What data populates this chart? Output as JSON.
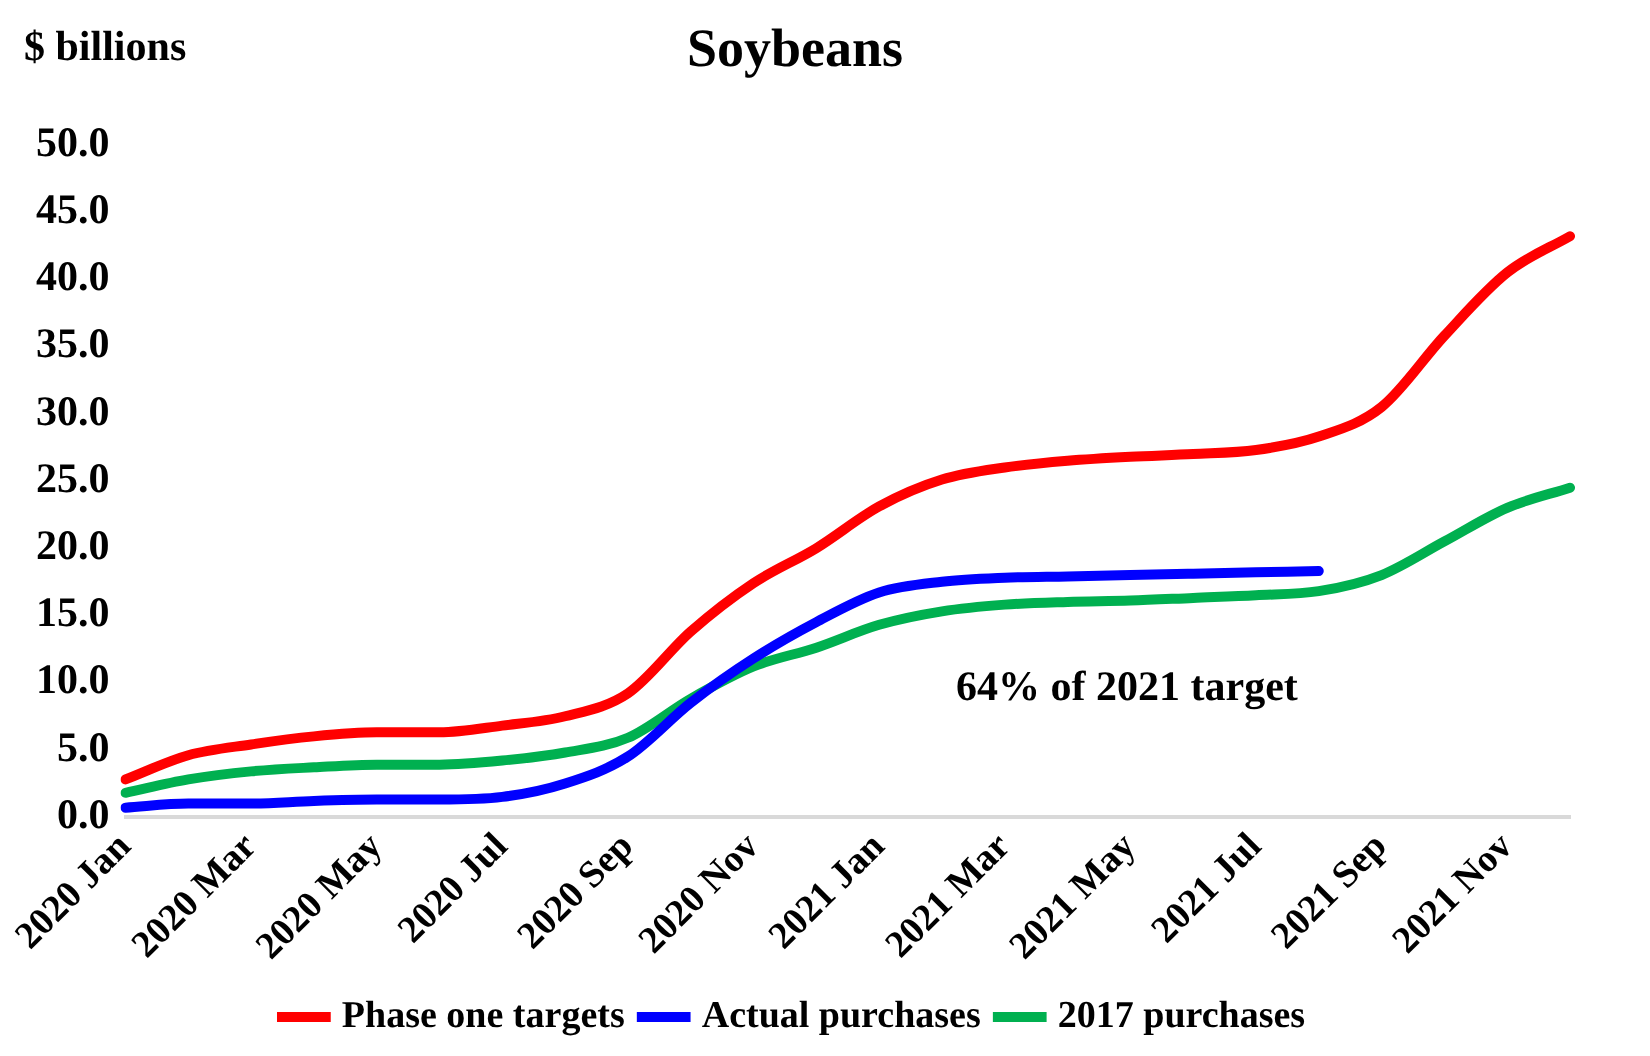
{
  "chart_data": {
    "type": "line",
    "title": "Soybeans",
    "ylabel": "$ billions",
    "categories": [
      "2020 Jan",
      null,
      "2020 Mar",
      null,
      "2020 May",
      null,
      "2020 Jul",
      null,
      "2020 Sep",
      null,
      "2020 Nov",
      null,
      "2021 Jan",
      null,
      "2021 Mar",
      null,
      "2021 May",
      null,
      "2021 Jul",
      null,
      "2021 Sep",
      null,
      "2021 Nov",
      null
    ],
    "series": [
      {
        "name": "Phase one targets",
        "color": "#ff0000",
        "values": [
          2.8,
          4.6,
          5.4,
          6.0,
          6.3,
          6.3,
          6.8,
          7.5,
          9.2,
          13.8,
          17.4,
          20.0,
          23.1,
          25.1,
          26.0,
          26.5,
          26.8,
          27.0,
          27.3,
          28.3,
          30.5,
          35.8,
          40.5,
          43.2
        ]
      },
      {
        "name": "Actual purchases",
        "color": "#0000ff",
        "values": [
          0.7,
          1.0,
          1.0,
          1.2,
          1.3,
          1.3,
          1.5,
          2.5,
          4.5,
          8.5,
          11.8,
          14.5,
          16.7,
          17.5,
          17.8,
          17.9,
          18.0,
          18.1,
          18.2,
          18.3,
          null,
          null,
          null,
          null
        ]
      },
      {
        "name": "2017 purchases",
        "color": "#00b050",
        "values": [
          1.8,
          2.8,
          3.4,
          3.7,
          3.9,
          3.9,
          4.2,
          4.8,
          5.9,
          8.8,
          11.2,
          12.6,
          14.3,
          15.3,
          15.8,
          16.0,
          16.1,
          16.3,
          16.5,
          16.8,
          18.0,
          20.5,
          23.0,
          24.5
        ]
      }
    ],
    "ylim": [
      0,
      50
    ],
    "yticks": [
      {
        "value": 0,
        "label": "0.0"
      },
      {
        "value": 5,
        "label": "5.0"
      },
      {
        "value": 10,
        "label": "10.0"
      },
      {
        "value": 15,
        "label": "15.0"
      },
      {
        "value": 20,
        "label": "20.0"
      },
      {
        "value": 25,
        "label": "25.0"
      },
      {
        "value": 30,
        "label": "30.0"
      },
      {
        "value": 35,
        "label": "35.0"
      },
      {
        "value": 40,
        "label": "40.0"
      },
      {
        "value": 45,
        "label": "45.0"
      },
      {
        "value": 50,
        "label": "50.0"
      }
    ],
    "annotations": [
      "64% of 2021 target"
    ],
    "legend": "bottom",
    "grid": false,
    "marker": "none",
    "line_style": "solid"
  }
}
